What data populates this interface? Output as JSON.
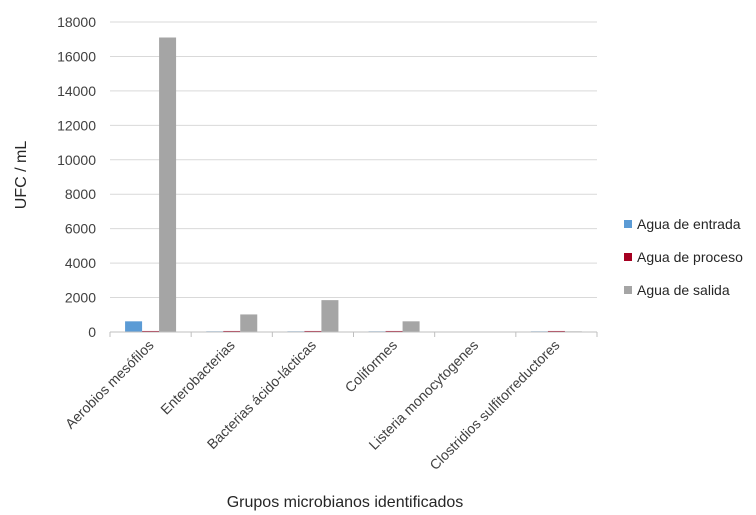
{
  "chart_data": {
    "type": "bar",
    "xlabel": "Grupos microbianos identificados",
    "ylabel": "UFC / mL",
    "ylim": [
      0,
      18000
    ],
    "yticks": [
      0,
      2000,
      4000,
      6000,
      8000,
      10000,
      12000,
      14000,
      16000,
      18000
    ],
    "grid": true,
    "legend_position": "right",
    "categories": [
      "Aerobios mesófilos",
      "Enterobacterias",
      "Bacterias ácido-lácticas",
      "Coliformes",
      "Listeria monocytogenes",
      "Clostridios sulfitorreductores"
    ],
    "series": [
      {
        "name": "Agua de entrada",
        "color": "#5b9bd5",
        "values": [
          620,
          40,
          40,
          40,
          0,
          40
        ]
      },
      {
        "name": "Agua de proceso",
        "color": "#a50021",
        "values": [
          60,
          60,
          60,
          60,
          0,
          60
        ]
      },
      {
        "name": "Agua de salida",
        "color": "#a5a5a5",
        "values": [
          17100,
          1020,
          1850,
          620,
          0,
          40
        ]
      }
    ]
  }
}
